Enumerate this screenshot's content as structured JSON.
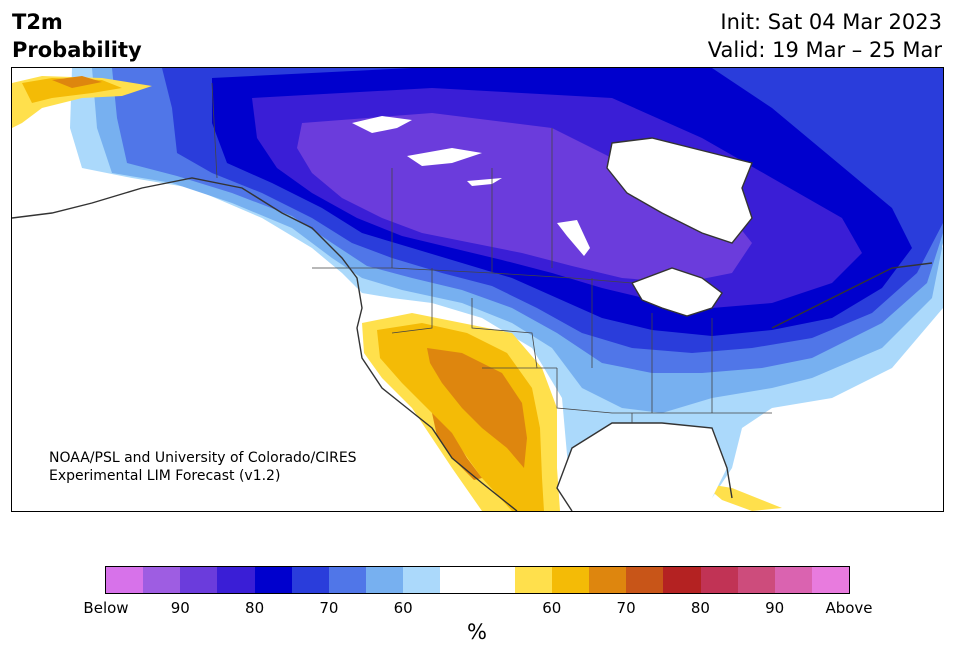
{
  "title": {
    "line1": "T2m",
    "line2": "Probability"
  },
  "dates": {
    "init": "Init: Sat 04 Mar 2023",
    "valid": "Valid: 19 Mar – 25 Mar"
  },
  "credit": {
    "line1": "NOAA/PSL and University of Colorado/CIRES",
    "line2": "Experimental LIM Forecast (v1.2)"
  },
  "colorbar": {
    "unit": "%",
    "colors": [
      "#d772ea",
      "#9e5de2",
      "#6b3cdc",
      "#3a1ed6",
      "#0000cd",
      "#2a3ddb",
      "#5076e8",
      "#77b0f0",
      "#abd9fb",
      "#ffffff",
      "#ffffff",
      "#ffe04c",
      "#f4bb06",
      "#de860e",
      "#c85518",
      "#b42222",
      "#c13355",
      "#cd4c7c",
      "#da63b0",
      "#e87bde"
    ],
    "ticks": [
      "Below",
      "90",
      "80",
      "70",
      "60",
      "60",
      "70",
      "80",
      "90",
      "Above"
    ]
  },
  "map_colors": {
    "below_90": "#6b3cdc",
    "below_80": "#3a1ed6",
    "below_75": "#0000cd",
    "below_70": "#2a3ddb",
    "below_65": "#5076e8",
    "below_60": "#77b0f0",
    "below_55": "#abd9fb",
    "above_55": "#ffe04c",
    "above_60": "#f4bb06",
    "above_65": "#de860e",
    "above_70": "#c85518"
  }
}
